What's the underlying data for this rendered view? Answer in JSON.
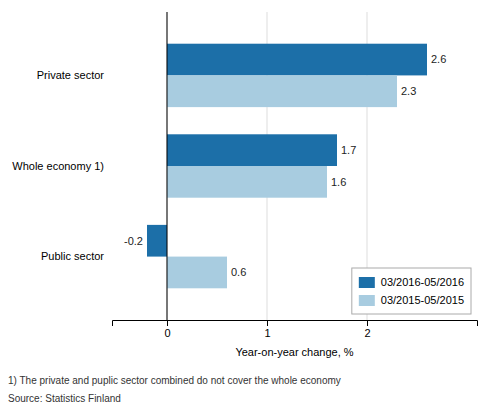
{
  "chart_data": {
    "type": "bar",
    "orientation": "horizontal",
    "categories": [
      "Public sector",
      "Whole economy 1)",
      "Private sector"
    ],
    "series": [
      {
        "name": "03/2016-05/2016",
        "color": "#1c6fa8",
        "values": [
          -0.2,
          1.7,
          2.6
        ]
      },
      {
        "name": "03/2015-05/2015",
        "color": "#a8cce0",
        "values": [
          0.6,
          1.6,
          2.3
        ]
      }
    ],
    "xlabel": "Year-on-year change, %",
    "xlim": [
      -0.55,
      3.1
    ],
    "xticks": [
      0,
      1,
      2
    ],
    "grid": true,
    "legend": "lower right",
    "data_labels": true,
    "annotations": [
      "1) The private and puplic sector combined do not cover the whole economy",
      "Source: Statistics Finland"
    ]
  }
}
